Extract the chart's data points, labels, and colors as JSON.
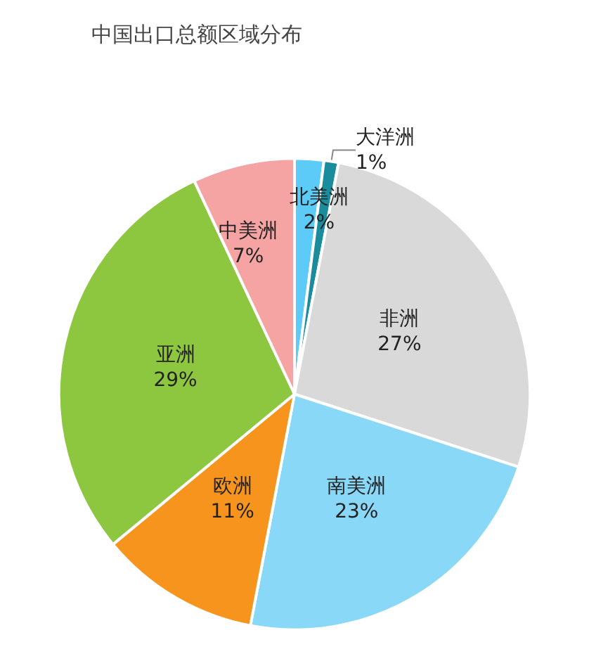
{
  "chart_data": {
    "type": "pie",
    "title": "中国出口总额区域分布",
    "categories": [
      "北美洲",
      "大洋洲",
      "非洲",
      "南美洲",
      "欧洲",
      "亚洲",
      "中美洲"
    ],
    "values": [
      2,
      1,
      27,
      23,
      11,
      29,
      7
    ],
    "value_labels": [
      "2%",
      "1%",
      "27%",
      "23%",
      "11%",
      "29%",
      "7%"
    ],
    "colors": [
      "#5ccbf7",
      "#1a8c9c",
      "#d9d9d9",
      "#8ad8f7",
      "#f7941d",
      "#8dc63f",
      "#f6a3a3"
    ],
    "legend": false
  }
}
